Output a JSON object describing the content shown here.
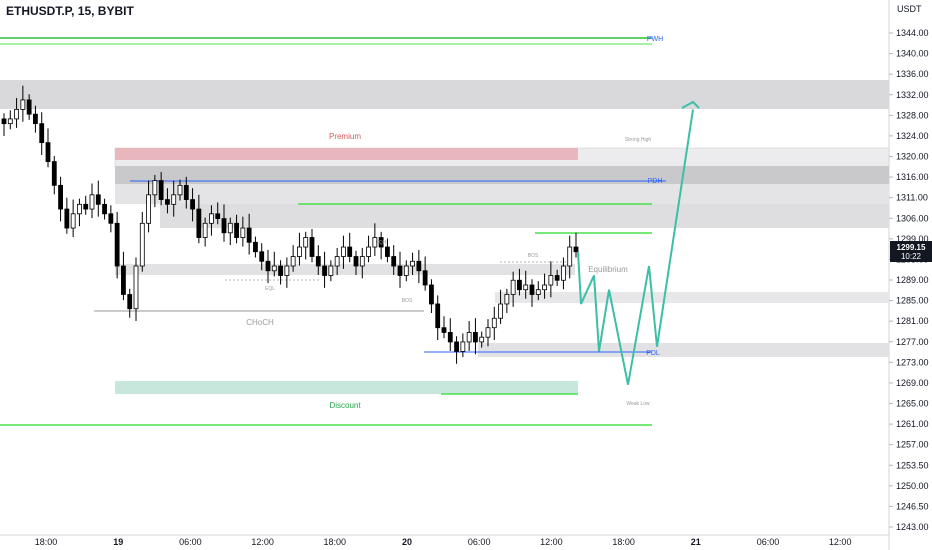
{
  "header": {
    "title": "ETHUSDT.P, 15, BYBIT"
  },
  "price_axis": {
    "unit": "USDT",
    "ticks": [
      "1344.00",
      "1340.00",
      "1336.00",
      "1332.00",
      "1328.00",
      "1324.00",
      "1320.00",
      "1316.00",
      "1311.00",
      "1306.00",
      "1299.00",
      "1293.00",
      "1289.00",
      "1285.00",
      "1281.00",
      "1277.00",
      "1273.00",
      "1269.00",
      "1265.00",
      "1261.00",
      "1257.00",
      "1253.50",
      "1250.00",
      "1246.50",
      "1243.00"
    ],
    "last_price": "1299.15",
    "countdown": "10:22"
  },
  "time_axis": {
    "ticks": [
      "18:00",
      "19",
      "06:00",
      "12:00",
      "18:00",
      "20",
      "06:00",
      "12:00",
      "18:00",
      "21",
      "06:00",
      "12:00"
    ]
  },
  "annotations": {
    "premium": "Premium",
    "strong_high": "Strong High",
    "pdh": "PDH",
    "pwh": "PWH",
    "eqh": "EQH",
    "eql": "EQL",
    "bos1": "BOS",
    "bos2": "BOS",
    "equilibrium": "Equilibrium",
    "choch": "CHoCH",
    "pdl": "PDL",
    "discount": "Discount",
    "weak_low": "Weak Low"
  },
  "colors": {
    "up": "#ffffff",
    "down": "#000000",
    "green_line": "#3fd13f",
    "blue_line": "#2962ff",
    "projection": "#3cbfa6",
    "premium_zone": "#e8b7bd",
    "discount_zone": "#c7e6dc",
    "gray_zone": "#d8d8da"
  },
  "chart_data": {
    "type": "candlestick",
    "symbol": "ETHUSDT.P",
    "timeframe": "15",
    "exchange": "BYBIT",
    "ylim": [
      1241,
      1347
    ],
    "levels": {
      "PWH": 1345.0,
      "PDH": 1312.5,
      "PDL": 1277.5,
      "strong_high": 1319.5,
      "weak_low": 1269.0
    },
    "close_series": [
      1326,
      1327,
      1329,
      1331,
      1328,
      1326,
      1322,
      1318,
      1313,
      1308,
      1304,
      1307,
      1309,
      1308,
      1311,
      1309,
      1307,
      1305,
      1296,
      1290,
      1287,
      1296,
      1305,
      1311,
      1314,
      1310,
      1309,
      1311,
      1313,
      1310,
      1308,
      1302,
      1305,
      1307,
      1306,
      1303,
      1305,
      1302,
      1304,
      1301,
      1299,
      1297,
      1295,
      1296,
      1294,
      1296,
      1298,
      1300,
      1302,
      1298,
      1296,
      1294,
      1296,
      1298,
      1300,
      1298,
      1296,
      1298,
      1300,
      1302,
      1300,
      1298,
      1296,
      1294,
      1296,
      1297,
      1295,
      1292,
      1288,
      1283,
      1282,
      1280,
      1278,
      1280,
      1282,
      1280,
      1281,
      1283,
      1285,
      1288,
      1290,
      1293,
      1291,
      1292,
      1290,
      1291,
      1292,
      1294,
      1293,
      1296,
      1300,
      1299
    ]
  },
  "projection_path": [
    1299,
    1288,
    1294,
    1278,
    1291,
    1271,
    1296,
    1279,
    1329
  ]
}
